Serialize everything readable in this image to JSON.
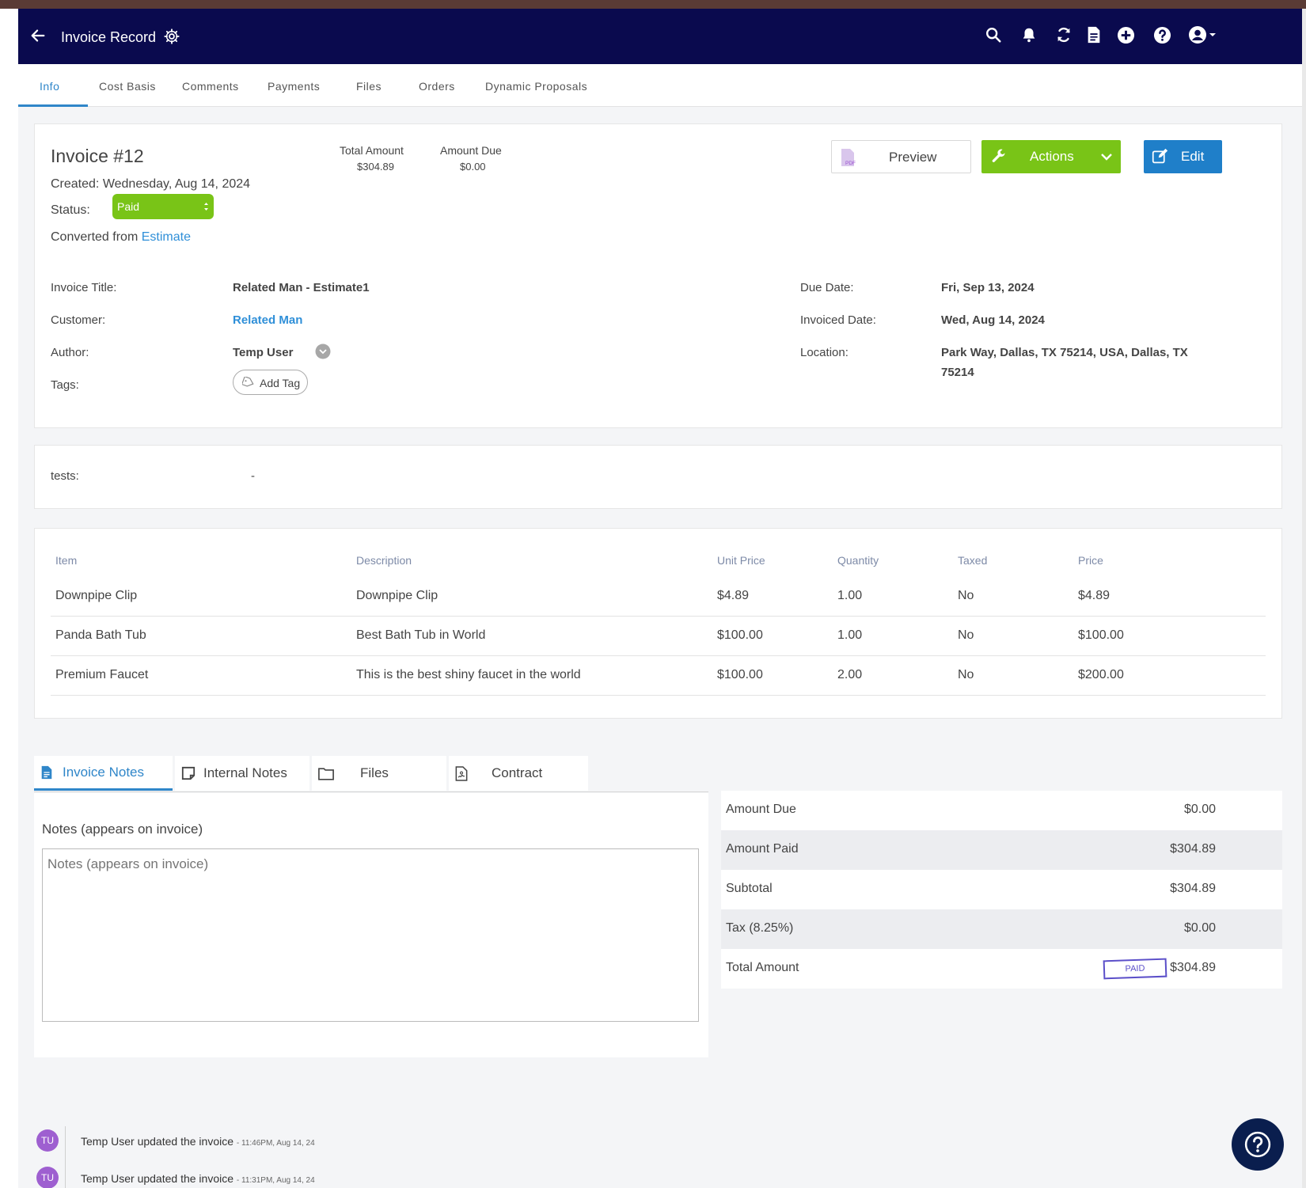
{
  "header": {
    "title": "Invoice Record"
  },
  "tabs": [
    {
      "label": "Info"
    },
    {
      "label": "Cost Basis"
    },
    {
      "label": "Comments"
    },
    {
      "label": "Payments"
    },
    {
      "label": "Files"
    },
    {
      "label": "Orders"
    },
    {
      "label": "Dynamic Proposals"
    }
  ],
  "summary": {
    "invoice_number": "Invoice #12",
    "created": "Created: Wednesday, Aug 14, 2024",
    "status_label": "Status:",
    "status_value": "Paid",
    "converted_prefix": "Converted from",
    "converted_link": "Estimate",
    "total_amount_label": "Total Amount",
    "total_amount_value": "$304.89",
    "amount_due_label": "Amount Due",
    "amount_due_value": "$0.00",
    "preview_label": "Preview",
    "preview_icon_text": "PDF",
    "actions_label": "Actions",
    "edit_label": "Edit"
  },
  "details": {
    "invoice_title_label": "Invoice Title:",
    "invoice_title_value": "Related Man - Estimate1",
    "customer_label": "Customer:",
    "customer_value": "Related Man",
    "author_label": "Author:",
    "author_value": "Temp User",
    "tags_label": "Tags:",
    "add_tag_label": "Add Tag",
    "due_date_label": "Due Date:",
    "due_date_value": "Fri, Sep 13, 2024",
    "invoiced_date_label": "Invoiced Date:",
    "invoiced_date_value": "Wed, Aug 14, 2024",
    "location_label": "Location:",
    "location_line1": "Park Way, Dallas, TX 75214, USA, Dallas, TX",
    "location_line2": "75214"
  },
  "custom_fields": {
    "tests_label": "tests:",
    "tests_value": "-"
  },
  "items_table": {
    "headers": [
      "Item",
      "Description",
      "Unit Price",
      "Quantity",
      "Taxed",
      "Price"
    ],
    "rows": [
      [
        "Downpipe Clip",
        "Downpipe Clip",
        "$4.89",
        "1.00",
        "No",
        "$4.89"
      ],
      [
        "Panda Bath Tub",
        "Best Bath Tub in World",
        "$100.00",
        "1.00",
        "No",
        "$100.00"
      ],
      [
        "Premium Faucet",
        "This is the best shiny faucet in the world",
        "$100.00",
        "2.00",
        "No",
        "$200.00"
      ]
    ]
  },
  "notes_tabs": [
    {
      "label": "Invoice Notes",
      "icon": "document-icon"
    },
    {
      "label": "Internal Notes",
      "icon": "note-icon"
    },
    {
      "label": "Files",
      "icon": "folder-icon"
    },
    {
      "label": "Contract",
      "icon": "contract-icon"
    }
  ],
  "notes": {
    "label": "Notes (appears on invoice)",
    "placeholder": "Notes (appears on invoice)"
  },
  "totals": {
    "amount_due_label": "Amount Due",
    "amount_due_value": "$0.00",
    "amount_paid_label": "Amount Paid",
    "amount_paid_value": "$304.89",
    "subtotal_label": "Subtotal",
    "subtotal_value": "$304.89",
    "tax_label": "Tax (8.25%)",
    "tax_value": "$0.00",
    "total_label": "Total Amount",
    "total_value": "$304.89",
    "paid_stamp": "PAID"
  },
  "activity": [
    {
      "initials": "TU",
      "text": "Temp User updated the invoice",
      "time": "- 11:46PM, Aug 14, 24"
    },
    {
      "initials": "TU",
      "text": "Temp User updated the invoice",
      "time": "- 11:31PM, Aug 14, 24"
    }
  ],
  "colors": {
    "header_bg": "#0a0a4e",
    "accent_blue": "#2f86c9",
    "actions_green": "#79c417",
    "edit_blue": "#1f7fc9",
    "avatar_purple": "#9e5fd0",
    "help_fab": "#0a1e4e"
  }
}
